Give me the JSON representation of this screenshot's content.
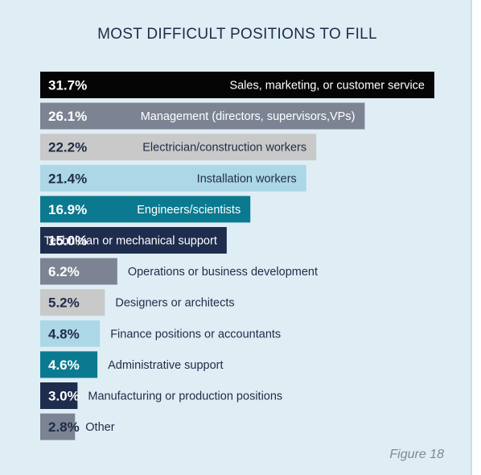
{
  "chart_data": {
    "type": "bar",
    "orientation": "horizontal",
    "title": "MOST DIFFICULT POSITIONS TO FILL",
    "categories": [
      "Sales, marketing, or customer service",
      "Management (directors, supervisors,VPs)",
      "Electrician/construction workers",
      "Installation workers",
      "Engineers/scientists",
      "Technician or mechanical support",
      "Operations or business development",
      "Designers or architects",
      "Finance positions or accountants",
      "Administrative support",
      "Manufacturing or production positions",
      "Other"
    ],
    "values": [
      31.7,
      26.1,
      22.2,
      21.4,
      16.9,
      15.0,
      6.2,
      5.2,
      4.8,
      4.6,
      3.0,
      2.8
    ],
    "value_labels": [
      "31.7%",
      "26.1%",
      "22.2%",
      "21.4%",
      "16.9%",
      "15.0%",
      "6.2%",
      "5.2%",
      "4.8%",
      "4.6%",
      "3.0%",
      "2.8%"
    ],
    "bar_colors": [
      "#050505",
      "#7c8494",
      "#c9c9c9",
      "#acd7e6",
      "#0b7a90",
      "#1e2c4d",
      "#7c8494",
      "#c9c9c9",
      "#acd7e6",
      "#0b7a90",
      "#1e2c4d",
      "#7c8494"
    ],
    "label_colors": [
      "#ffffff",
      "#ffffff",
      "#1f2b48",
      "#1f2b48",
      "#ffffff",
      "#ffffff",
      "#ffffff",
      "#1f2b48",
      "#1f2b48",
      "#ffffff",
      "#ffffff",
      "#1f2b48"
    ],
    "xlim": [
      0,
      31.7
    ],
    "grid": false,
    "legend": false
  },
  "figure_label": "Figure 18"
}
